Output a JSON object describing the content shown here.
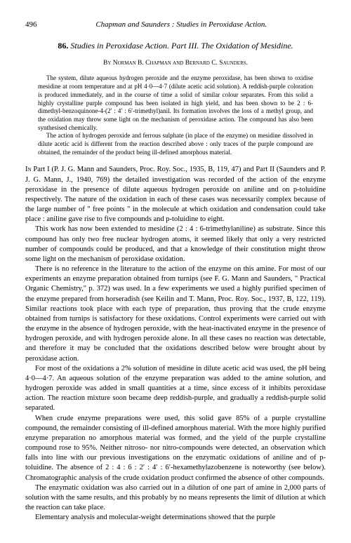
{
  "header": {
    "page_number": "496",
    "running_title": "Chapman and Saunders : Studies in Peroxidase Action."
  },
  "title": {
    "number": "86.",
    "text": "Studies in Peroxidase Action. Part III. The Oxidation of Mesidine."
  },
  "authors": "By Norman B. Chapman and Bernard C. Saunders.",
  "abstract": [
    "The system, dilute aqueous hydrogen peroxide and the enzyme peroxidase, has been shown to oxidise mesidine at room temperature and at pH 4·0—4·7 (dilute acetic acid solution). A reddish-purple coloration is produced immediately, and in the course of time a solid of similar colour separates. From this solid a highly crystalline purple compound has been isolated in high yield, and has been shown to be 2 : 6-dimethyl-benzoquinone-4-(2′ : 4′ : 6′-trimethyl)anil. Its formation involves the loss of a methyl group, and the oxidation may throw some light on the mechanism of peroxidase action. The compound has also been synthesised chemically.",
    "The action of hydrogen peroxide and ferrous sulphate (in place of the enzyme) on mesidine dissolved in dilute acetic acid is different from the reaction described above : only traces of the purple compound are obtained, the remainder of the product being ill-defined amorphous material."
  ],
  "body": [
    "In Part I (P. J. G. Mann and Saunders, Proc. Roy. Soc., 1935, B, 119, 47) and Part II (Saunders and P. J. G. Mann, J., 1940, 769) the detailed investigation was recorded of the action of the enzyme peroxidase in the presence of dilute aqueous hydrogen peroxide on aniline and on p-toluidine respectively. The nature of the oxidation in each of these cases was necessarily complex because of the large number of \" free points \" in the molecule at which oxidation and condensation could take place : aniline gave rise to five compounds and p-toluidine to eight.",
    "This work has now been extended to mesidine (2 : 4 : 6-trimethylaniline) as substrate. Since this compound has only two free nuclear hydrogen atoms, it seemed likely that only a very restricted number of compounds could be produced, and that a knowledge of their constitution might throw some light on the mechanism of peroxidase oxidation.",
    "There is no reference in the literature to the action of the enzyme on this amine. For most of our experiments an enzyme preparation obtained from turnips (see F. G. Mann and Saunders, \" Practical Organic Chemistry,\" p. 372) was used. In a few experiments we used a highly purified specimen of the enzyme prepared from horseradish (see Keilin and T. Mann, Proc. Roy. Soc., 1937, B, 122, 119). Similar reactions took place with each type of preparation, thus proving that the crude enzyme obtained from turnips is satisfactory for these oxidations. Control experiments were carried out with the enzyme in the absence of hydrogen peroxide, with the heat-inactivated enzyme in the presence of hydrogen peroxide, and with hydrogen peroxide alone. In all these cases no reaction was detectable, and therefore it may be concluded that the oxidations described below were brought about by peroxidase action.",
    "For most of the oxidations a 2% solution of mesidine in dilute acetic acid was used, the pH being 4·0—4·7. An aqueous solution of the enzyme preparation was added to the amine solution, and hydrogen peroxide was added in small quantities at a time, since excess of it inhibits peroxidase action. The reaction mixture soon became deep reddish-purple, and gradually a reddish-purple solid separated.",
    "When crude enzyme preparations were used, this solid gave 85% of a purple crystalline compound, the remainder consisting of ill-defined amorphous material. With the more highly purified enzyme preparation no amorphous material was formed, and the yield of the purple crystalline compound rose to 95%. Neither nitroso- nor nitro-compounds were detected, an observation which falls into line with our previous investigations on the enzymatic oxidations of aniline and of p-toluidine. The absence of 2 : 4 : 6 : 2′ : 4′ : 6′-hexamethylazobenzene is noteworthy (see below). Chromatographic analysis of the crude oxidation product confirmed the absence of other compounds.",
    "The enzymatic oxidation was also carried out in a dilution of one part of amine in 2,000 parts of solution with the same results, and this probably by no means represents the limit of dilution at which the reaction can take place.",
    "Elementary analysis and molecular-weight determinations showed that the purple"
  ]
}
